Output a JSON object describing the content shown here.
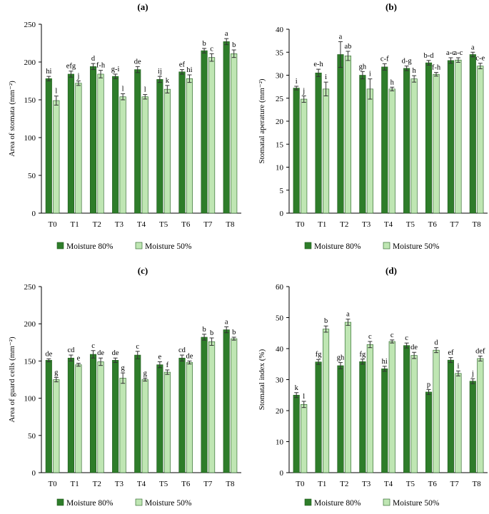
{
  "figure": {
    "series_names": [
      "Moisture 80%",
      "Moisture 50%"
    ],
    "colors": {
      "m80": "#2e7d2a",
      "m50": "#bfe6b3",
      "axis": "#000000",
      "error": "#333333"
    }
  },
  "chart_data": [
    {
      "panel": "(a)",
      "type": "bar",
      "ylabel": "Area of stomata (mm⁻²)",
      "ylim": [
        0,
        250
      ],
      "yticks": [
        0,
        50,
        100,
        150,
        200,
        250
      ],
      "categories": [
        "T0",
        "T1",
        "T2",
        "T3",
        "T4",
        "T5",
        "T6",
        "T7",
        "T8"
      ],
      "series": [
        {
          "name": "Moisture 80%",
          "values": [
            178,
            184,
            194,
            181,
            190,
            177,
            187,
            215,
            227
          ],
          "errors": [
            3,
            4,
            4,
            3,
            4,
            4,
            3,
            3,
            4
          ],
          "labels": [
            "hi",
            "efg",
            "d",
            "g-i",
            "de",
            "ij",
            "ef",
            "b",
            "a"
          ]
        },
        {
          "name": "Moisture 50%",
          "values": [
            149,
            172,
            184,
            154,
            154,
            164,
            178,
            206,
            211
          ],
          "errors": [
            6,
            3,
            5,
            4,
            3,
            5,
            5,
            5,
            5
          ],
          "labels": [
            "l",
            "j",
            "f-h",
            "l",
            "l",
            "k",
            "hi",
            "c",
            "b"
          ]
        }
      ]
    },
    {
      "panel": "(b)",
      "type": "bar",
      "ylabel": "Stomatal aperature (mm⁻²)",
      "ylim": [
        0,
        40
      ],
      "yticks": [
        0,
        5,
        10,
        15,
        20,
        25,
        30,
        35,
        40
      ],
      "categories": [
        "T0",
        "T1",
        "T2",
        "T3",
        "T4",
        "T5",
        "T6",
        "T7",
        "T8"
      ],
      "series": [
        {
          "name": "Moisture 80%",
          "values": [
            27.2,
            30.5,
            34.5,
            30.0,
            31.8,
            31.5,
            32.7,
            33.2,
            34.5
          ],
          "errors": [
            0.4,
            0.8,
            2.8,
            0.8,
            0.7,
            0.5,
            0.5,
            0.6,
            0.5
          ],
          "labels": [
            "i",
            "e-h",
            "a",
            "gh",
            "c-f",
            "d-g",
            "b-d",
            "a-c",
            "a"
          ]
        },
        {
          "name": "Moisture 50%",
          "values": [
            24.8,
            27.0,
            34.2,
            27.0,
            27.0,
            29.2,
            30.2,
            33.3,
            32.0
          ],
          "errors": [
            0.7,
            1.5,
            1.0,
            2.2,
            0.4,
            0.7,
            0.4,
            0.5,
            0.6
          ],
          "labels": [
            "j",
            "i",
            "ab",
            "i",
            "h",
            "h",
            "f-h",
            "a-c",
            "c-e"
          ]
        }
      ]
    },
    {
      "panel": "(c)",
      "type": "bar",
      "ylabel": "Area of guard cells (mm⁻²)",
      "ylim": [
        0,
        250
      ],
      "yticks": [
        0,
        50,
        100,
        150,
        200,
        250
      ],
      "categories": [
        "T0",
        "T1",
        "T2",
        "T3",
        "T4",
        "T5",
        "T6",
        "T7",
        "T8"
      ],
      "series": [
        {
          "name": "Moisture 80%",
          "values": [
            151,
            154,
            159,
            151,
            158,
            145,
            154,
            182,
            192
          ],
          "errors": [
            2,
            4,
            5,
            3,
            5,
            4,
            4,
            4,
            4
          ],
          "labels": [
            "de",
            "cd",
            "c",
            "de",
            "c",
            "e",
            "cd",
            "b",
            "a"
          ]
        },
        {
          "name": "Moisture 50%",
          "values": [
            125,
            145,
            149,
            127,
            125,
            135,
            148,
            176,
            180
          ],
          "errors": [
            3,
            2,
            5,
            7,
            2,
            3,
            2,
            5,
            2
          ],
          "labels": [
            "g",
            "e",
            "de",
            "g",
            "g",
            "f",
            "de",
            "b",
            "b"
          ]
        }
      ]
    },
    {
      "panel": "(d)",
      "type": "bar",
      "ylabel": "Stomatal index (%)",
      "ylim": [
        0,
        60
      ],
      "yticks": [
        0,
        10,
        20,
        30,
        40,
        50,
        60
      ],
      "categories": [
        "T0",
        "T1",
        "T2",
        "T3",
        "T4",
        "T5",
        "T6",
        "T7",
        "T8"
      ],
      "series": [
        {
          "name": "Moisture 80%",
          "values": [
            25,
            35.7,
            34.5,
            35.8,
            33.5,
            41.0,
            26.0,
            36.3,
            29.5
          ],
          "errors": [
            0.8,
            0.8,
            1.0,
            0.8,
            0.8,
            0.8,
            0.8,
            0.8,
            0.8
          ],
          "labels": [
            "k",
            "fg",
            "gh",
            "fg",
            "hi",
            "c",
            "p",
            "ef",
            "j"
          ]
        },
        {
          "name": "Moisture 50%",
          "values": [
            22,
            46.3,
            48.5,
            41.3,
            42.3,
            37.8,
            39.5,
            32.0,
            36.8
          ],
          "errors": [
            1.0,
            1.0,
            1.0,
            1.0,
            0.5,
            1.0,
            0.8,
            0.8,
            0.8
          ],
          "labels": [
            "l",
            "b",
            "a",
            "c",
            "c",
            "de",
            "d",
            "i",
            "def"
          ]
        }
      ]
    }
  ]
}
